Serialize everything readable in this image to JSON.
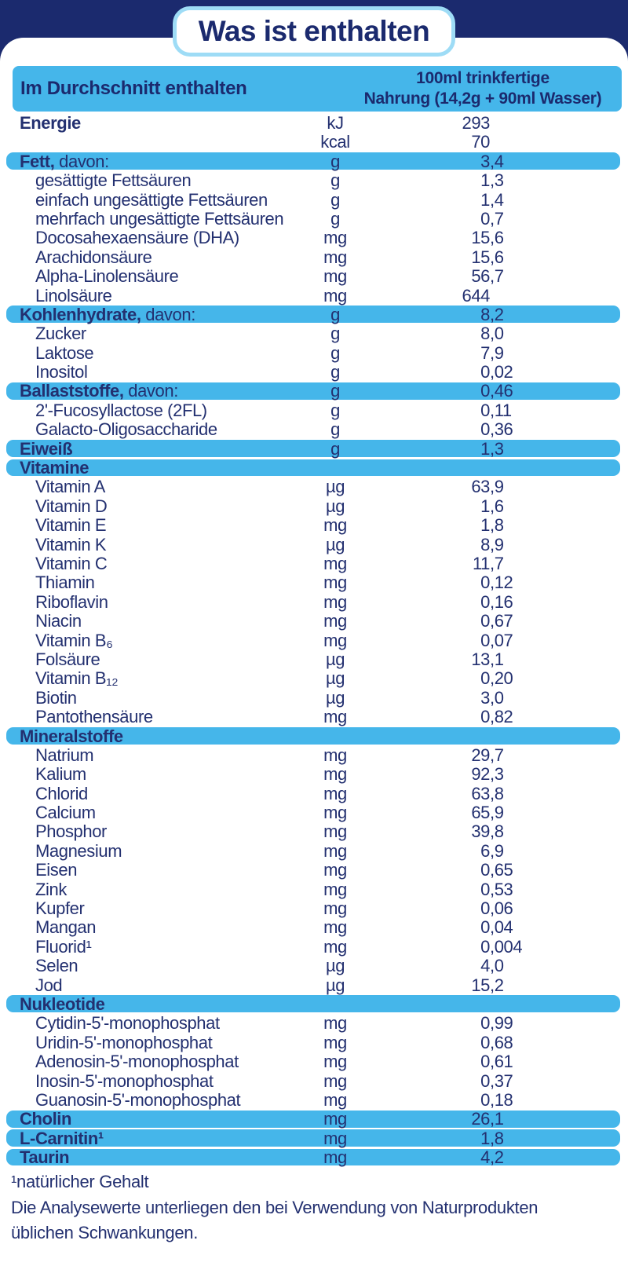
{
  "title": "Was ist enthalten",
  "colors": {
    "navy": "#1b2a6e",
    "band_blue": "#45b6ea",
    "text": "#233070",
    "pill_border": "#9edcf6"
  },
  "table": {
    "header": {
      "left": "Im Durchschnitt enthalten",
      "right_line1": "100ml trinkfertige",
      "right_line2": "Nahrung (14,2g + 90ml Wasser)"
    },
    "rows": [
      {
        "label": "Energie",
        "suffix": "",
        "unit": "kJ",
        "value": "293",
        "band": false,
        "indent": false,
        "bold": true
      },
      {
        "label": "",
        "suffix": "",
        "unit": "kcal",
        "value": "70",
        "band": false,
        "indent": false,
        "bold": false
      },
      {
        "label": "Fett,",
        "suffix": " davon:",
        "unit": "g",
        "value": "3,4",
        "band": true,
        "indent": false,
        "bold": true
      },
      {
        "label": "gesättigte Fettsäuren",
        "suffix": "",
        "unit": "g",
        "value": "1,3",
        "band": false,
        "indent": true,
        "bold": false
      },
      {
        "label": "einfach ungesättigte Fettsäuren",
        "suffix": "",
        "unit": "g",
        "value": "1,4",
        "band": false,
        "indent": true,
        "bold": false
      },
      {
        "label": "mehrfach ungesättigte Fettsäuren",
        "suffix": "",
        "unit": "g",
        "value": "0,7",
        "band": false,
        "indent": true,
        "bold": false
      },
      {
        "label": "Docosahexaensäure (DHA)",
        "suffix": "",
        "unit": "mg",
        "value": "15,6",
        "band": false,
        "indent": true,
        "bold": false
      },
      {
        "label": "Arachidonsäure",
        "suffix": "",
        "unit": "mg",
        "value": "15,6",
        "band": false,
        "indent": true,
        "bold": false
      },
      {
        "label": "Alpha-Linolensäure",
        "suffix": "",
        "unit": "mg",
        "value": "56,7",
        "band": false,
        "indent": true,
        "bold": false
      },
      {
        "label": "Linolsäure",
        "suffix": "",
        "unit": "mg",
        "value": "644",
        "band": false,
        "indent": true,
        "bold": false
      },
      {
        "label": "Kohlenhydrate,",
        "suffix": " davon:",
        "unit": "g",
        "value": "8,2",
        "band": true,
        "indent": false,
        "bold": true
      },
      {
        "label": "Zucker",
        "suffix": "",
        "unit": "g",
        "value": "8,0",
        "band": false,
        "indent": true,
        "bold": false
      },
      {
        "label": "Laktose",
        "suffix": "",
        "unit": "g",
        "value": "7,9",
        "band": false,
        "indent": true,
        "bold": false
      },
      {
        "label": "Inositol",
        "suffix": "",
        "unit": "g",
        "value": "0,02",
        "band": false,
        "indent": true,
        "bold": false
      },
      {
        "label": "Ballaststoffe,",
        "suffix": " davon:",
        "unit": "g",
        "value": "0,46",
        "band": true,
        "indent": false,
        "bold": true
      },
      {
        "label": "2'-Fucosyllactose (2FL)",
        "suffix": "",
        "unit": "g",
        "value": "0,11",
        "band": false,
        "indent": true,
        "bold": false
      },
      {
        "label": "Galacto-Oligosaccharide",
        "suffix": "",
        "unit": "g",
        "value": "0,36",
        "band": false,
        "indent": true,
        "bold": false
      },
      {
        "label": "Eiweiß",
        "suffix": "",
        "unit": "g",
        "value": "1,3",
        "band": true,
        "indent": false,
        "bold": true
      },
      {
        "label": "Vitamine",
        "suffix": "",
        "unit": "",
        "value": "",
        "band": true,
        "indent": false,
        "bold": true
      },
      {
        "label": "Vitamin A",
        "suffix": "",
        "unit": "µg",
        "value": "63,9",
        "band": false,
        "indent": true,
        "bold": false
      },
      {
        "label": "Vitamin D",
        "suffix": "",
        "unit": "µg",
        "value": "1,6",
        "band": false,
        "indent": true,
        "bold": false
      },
      {
        "label": "Vitamin E",
        "suffix": "",
        "unit": "mg",
        "value": "1,8",
        "band": false,
        "indent": true,
        "bold": false
      },
      {
        "label": "Vitamin K",
        "suffix": "",
        "unit": "µg",
        "value": "8,9",
        "band": false,
        "indent": true,
        "bold": false
      },
      {
        "label": "Vitamin C",
        "suffix": "",
        "unit": "mg",
        "value": "11,7",
        "band": false,
        "indent": true,
        "bold": false
      },
      {
        "label": "Thiamin",
        "suffix": "",
        "unit": "mg",
        "value": "0,12",
        "band": false,
        "indent": true,
        "bold": false
      },
      {
        "label": "Riboflavin",
        "suffix": "",
        "unit": "mg",
        "value": "0,16",
        "band": false,
        "indent": true,
        "bold": false
      },
      {
        "label": "Niacin",
        "suffix": "",
        "unit": "mg",
        "value": "0,67",
        "band": false,
        "indent": true,
        "bold": false
      },
      {
        "label": "Vitamin B₆",
        "suffix": "",
        "unit": "mg",
        "value": "0,07",
        "band": false,
        "indent": true,
        "bold": false
      },
      {
        "label": "Folsäure",
        "suffix": "",
        "unit": "µg",
        "value": "13,1",
        "band": false,
        "indent": true,
        "bold": false
      },
      {
        "label": "Vitamin B₁₂",
        "suffix": "",
        "unit": "µg",
        "value": "0,20",
        "band": false,
        "indent": true,
        "bold": false
      },
      {
        "label": "Biotin",
        "suffix": "",
        "unit": "µg",
        "value": "3,0",
        "band": false,
        "indent": true,
        "bold": false
      },
      {
        "label": "Pantothensäure",
        "suffix": "",
        "unit": "mg",
        "value": "0,82",
        "band": false,
        "indent": true,
        "bold": false
      },
      {
        "label": "Mineralstoffe",
        "suffix": "",
        "unit": "",
        "value": "",
        "band": true,
        "indent": false,
        "bold": true
      },
      {
        "label": "Natrium",
        "suffix": "",
        "unit": "mg",
        "value": "29,7",
        "band": false,
        "indent": true,
        "bold": false
      },
      {
        "label": "Kalium",
        "suffix": "",
        "unit": "mg",
        "value": "92,3",
        "band": false,
        "indent": true,
        "bold": false
      },
      {
        "label": "Chlorid",
        "suffix": "",
        "unit": "mg",
        "value": "63,8",
        "band": false,
        "indent": true,
        "bold": false
      },
      {
        "label": "Calcium",
        "suffix": "",
        "unit": "mg",
        "value": "65,9",
        "band": false,
        "indent": true,
        "bold": false
      },
      {
        "label": "Phosphor",
        "suffix": "",
        "unit": "mg",
        "value": "39,8",
        "band": false,
        "indent": true,
        "bold": false
      },
      {
        "label": "Magnesium",
        "suffix": "",
        "unit": "mg",
        "value": "6,9",
        "band": false,
        "indent": true,
        "bold": false
      },
      {
        "label": "Eisen",
        "suffix": "",
        "unit": "mg",
        "value": "0,65",
        "band": false,
        "indent": true,
        "bold": false
      },
      {
        "label": "Zink",
        "suffix": "",
        "unit": "mg",
        "value": "0,53",
        "band": false,
        "indent": true,
        "bold": false
      },
      {
        "label": "Kupfer",
        "suffix": "",
        "unit": "mg",
        "value": "0,06",
        "band": false,
        "indent": true,
        "bold": false
      },
      {
        "label": "Mangan",
        "suffix": "",
        "unit": "mg",
        "value": "0,04",
        "band": false,
        "indent": true,
        "bold": false
      },
      {
        "label": "Fluorid¹",
        "suffix": "",
        "unit": "mg",
        "value": "0,004",
        "band": false,
        "indent": true,
        "bold": false
      },
      {
        "label": "Selen",
        "suffix": "",
        "unit": "µg",
        "value": "4,0",
        "band": false,
        "indent": true,
        "bold": false
      },
      {
        "label": "Jod",
        "suffix": "",
        "unit": "µg",
        "value": "15,2",
        "band": false,
        "indent": true,
        "bold": false
      },
      {
        "label": "Nukleotide",
        "suffix": "",
        "unit": "",
        "value": "",
        "band": true,
        "indent": false,
        "bold": true
      },
      {
        "label": "Cytidin-5'-monophosphat",
        "suffix": "",
        "unit": "mg",
        "value": "0,99",
        "band": false,
        "indent": true,
        "bold": false
      },
      {
        "label": "Uridin-5'-monophosphat",
        "suffix": "",
        "unit": "mg",
        "value": "0,68",
        "band": false,
        "indent": true,
        "bold": false
      },
      {
        "label": "Adenosin-5'-monophosphat",
        "suffix": "",
        "unit": "mg",
        "value": "0,61",
        "band": false,
        "indent": true,
        "bold": false
      },
      {
        "label": "Inosin-5'-monophosphat",
        "suffix": "",
        "unit": "mg",
        "value": "0,37",
        "band": false,
        "indent": true,
        "bold": false
      },
      {
        "label": "Guanosin-5'-monophosphat",
        "suffix": "",
        "unit": "mg",
        "value": "0,18",
        "band": false,
        "indent": true,
        "bold": false
      },
      {
        "label": "Cholin",
        "suffix": "",
        "unit": "mg",
        "value": "26,1",
        "band": true,
        "indent": false,
        "bold": true
      },
      {
        "label": "L-Carnitin¹",
        "suffix": "",
        "unit": "mg",
        "value": "1,8",
        "band": true,
        "indent": false,
        "bold": true
      },
      {
        "label": "Taurin",
        "suffix": "",
        "unit": "mg",
        "value": "4,2",
        "band": true,
        "indent": false,
        "bold": true
      }
    ]
  },
  "footnotes": [
    "¹natürlicher Gehalt",
    "Die Analysewerte unterliegen den bei Verwendung von Naturprodukten",
    "üblichen Schwankungen."
  ]
}
